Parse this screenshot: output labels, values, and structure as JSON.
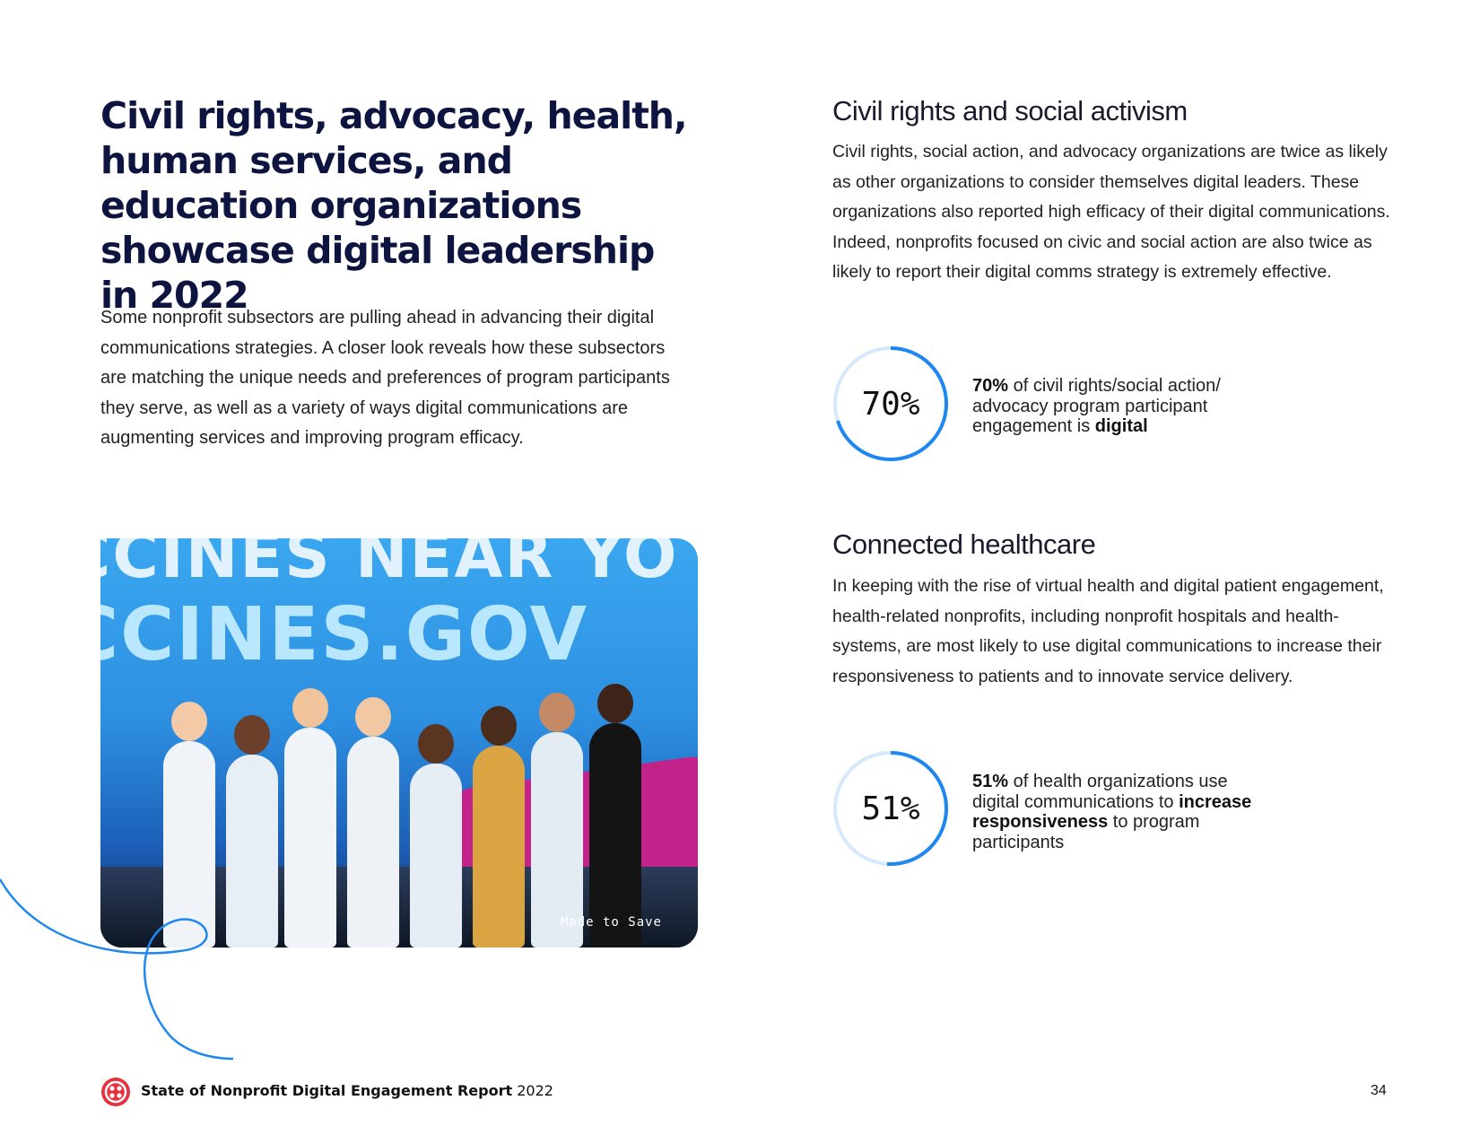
{
  "headline": "Civil rights, advocacy, health, human services, and education organizations showcase digital leadership in 2022",
  "intro": "Some nonprofit subsectors are pulling ahead in advancing their digital communications strategies. A closer look reveals how these subsectors are matching the unique needs and preferences of program participants they serve, as well as a variety of ways digital communications are augmenting services and improving program efficacy.",
  "photo": {
    "bus_text_top": "CCINES NEAR YO",
    "bus_text_bottom": "CCINES.GOV",
    "caption": "Made to Save"
  },
  "sections": [
    {
      "title": "Civil rights and social activism",
      "body": "Civil rights, social action, and advocacy organizations are twice as likely as other organizations to consider themselves digital leaders. These organizations also reported high efficacy of their digital communications. Indeed, nonprofits focused on civic and social action are also twice as likely to report their digital comms strategy is extremely effective.",
      "stat": {
        "value_label": "70%",
        "fraction": 0.7,
        "text_bold_1": "70%",
        "text_1": " of civil rights/social action/ advocacy program participant engagement is ",
        "text_bold_2": "digital",
        "text_2": ""
      }
    },
    {
      "title": "Connected healthcare",
      "body": "In keeping with the rise of virtual health and digital patient engagement, health-related nonprofits, including nonprofit hospitals and health-systems, are most likely to use digital communications to increase their responsiveness to patients and to innovate service delivery.",
      "stat": {
        "value_label": "51%",
        "fraction": 0.51,
        "text_bold_1": "51%",
        "text_1": " of health organizations use digital communications to ",
        "text_bold_2": "increase responsiveness",
        "text_2": " to program participants"
      }
    }
  ],
  "footer": {
    "title_bold": "State of Nonprofit Digital Engagement Report",
    "title_year": " 2022",
    "page_number": "34"
  },
  "colors": {
    "accent_blue": "#1e88f0",
    "ring_track": "#d6e8fb",
    "headline_navy": "#0e1440",
    "logo_red": "#e8313f"
  }
}
